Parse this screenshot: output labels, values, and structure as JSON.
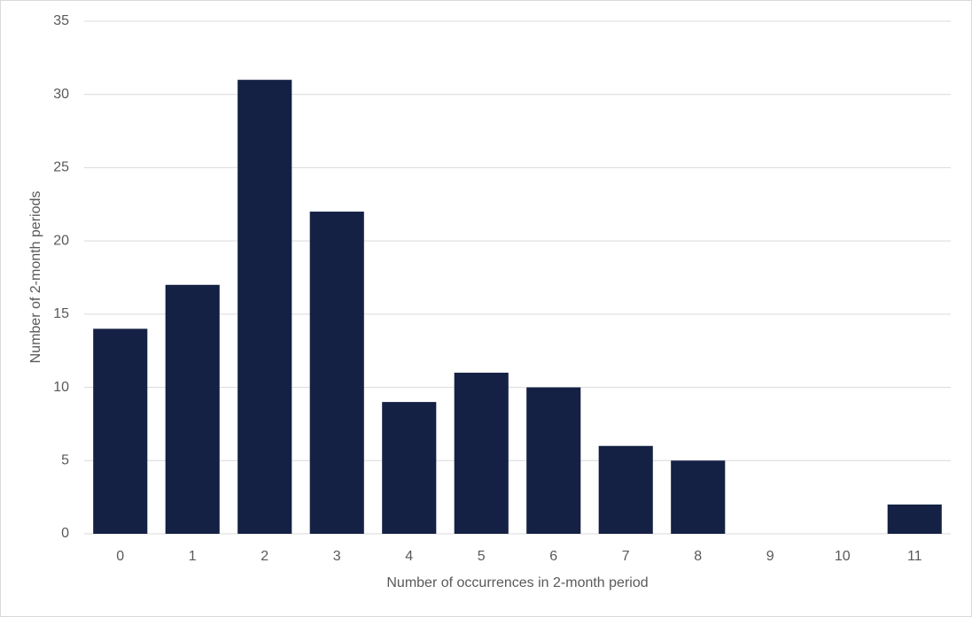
{
  "chart_data": {
    "type": "bar",
    "x_label": "Number of occurrences in 2-month period",
    "y_label": "Number of 2-month periods",
    "categories": [
      "0",
      "1",
      "2",
      "3",
      "4",
      "5",
      "6",
      "7",
      "8",
      "9",
      "10",
      "11"
    ],
    "values": [
      14,
      17,
      31,
      22,
      9,
      11,
      10,
      6,
      5,
      0,
      0,
      2
    ],
    "color": "#142144",
    "ylim": [
      0,
      35
    ],
    "yticks": [
      0,
      5,
      10,
      15,
      20,
      25,
      30,
      35
    ],
    "grid": true
  }
}
